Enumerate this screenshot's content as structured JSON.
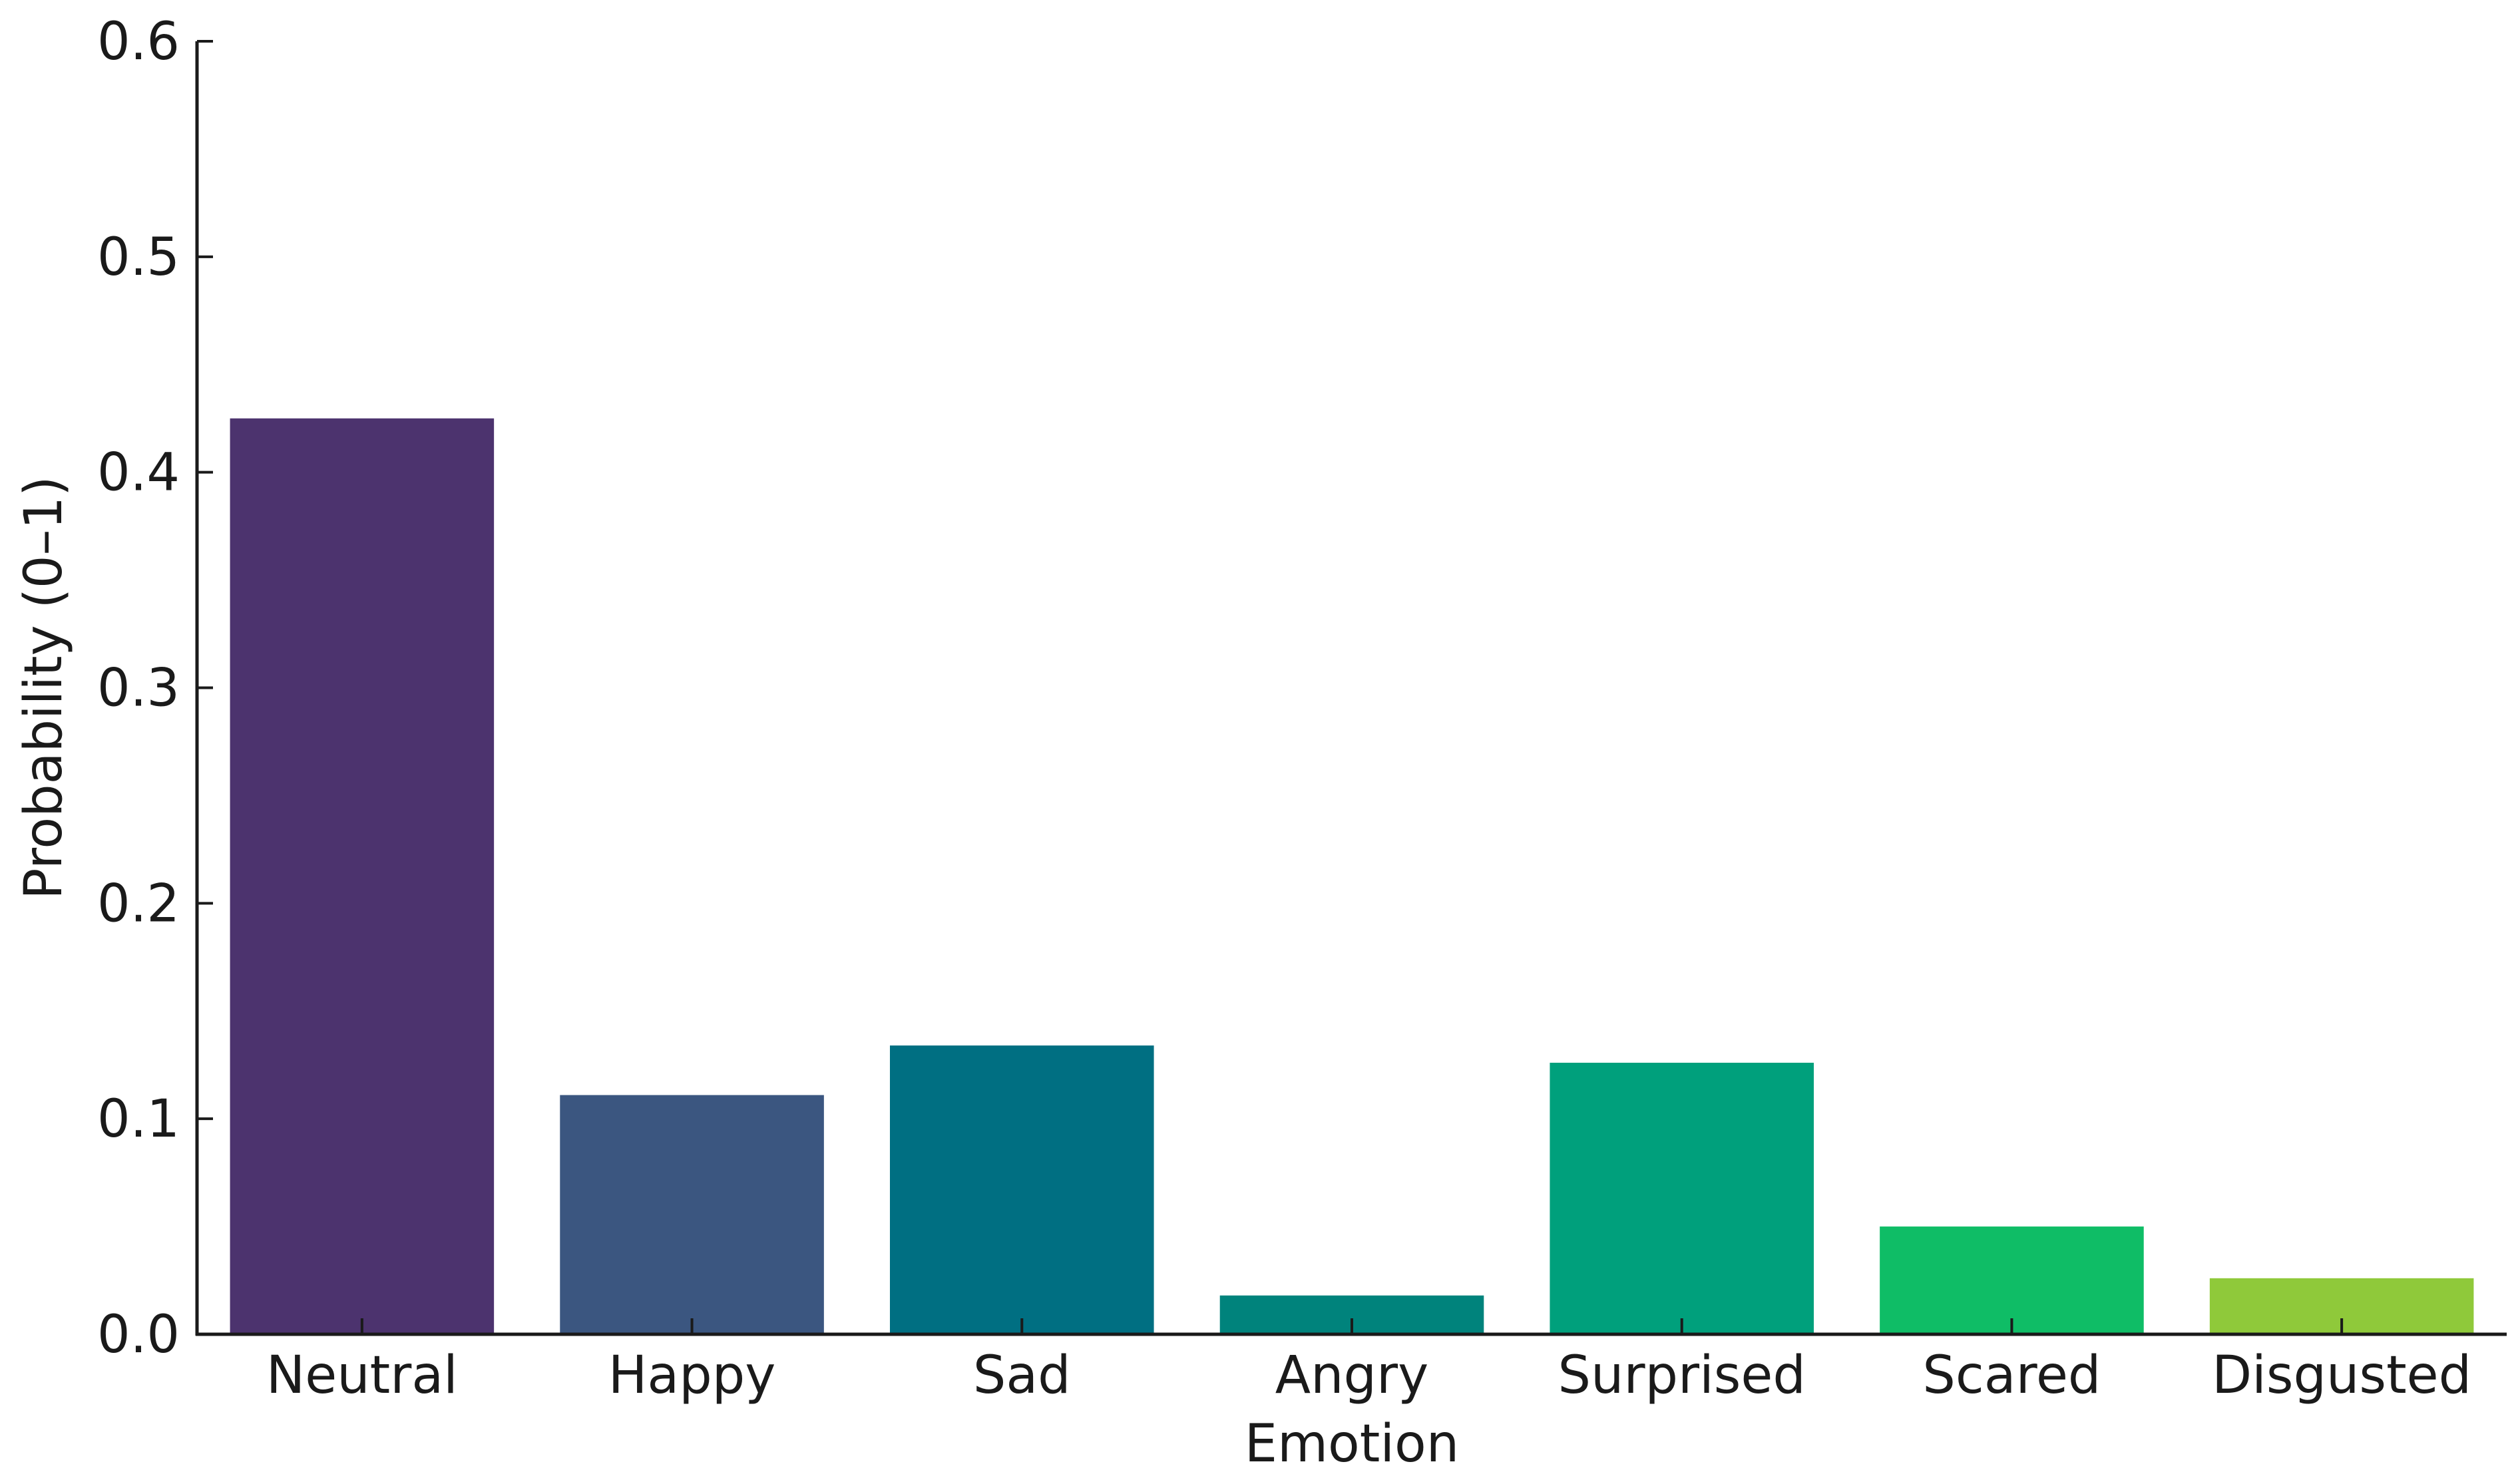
{
  "chart_data": {
    "type": "bar",
    "title": "",
    "xlabel": "Emotion",
    "ylabel": "Probability (0–1)",
    "ylim": [
      0,
      0.6
    ],
    "yticks": [
      "0.0",
      "0.1",
      "0.2",
      "0.3",
      "0.4",
      "0.5",
      "0.6"
    ],
    "categories": [
      "Neutral",
      "Happy",
      "Sad",
      "Angry",
      "Surprised",
      "Scared",
      "Disgusted"
    ],
    "values": [
      0.425,
      0.111,
      0.134,
      0.018,
      0.126,
      0.05,
      0.026
    ],
    "colors": [
      "#4c336e",
      "#3b5680",
      "#006f82",
      "#00837c",
      "#00a07c",
      "#0fbd66",
      "#8fc93a"
    ],
    "grid": false,
    "legend": "none"
  }
}
